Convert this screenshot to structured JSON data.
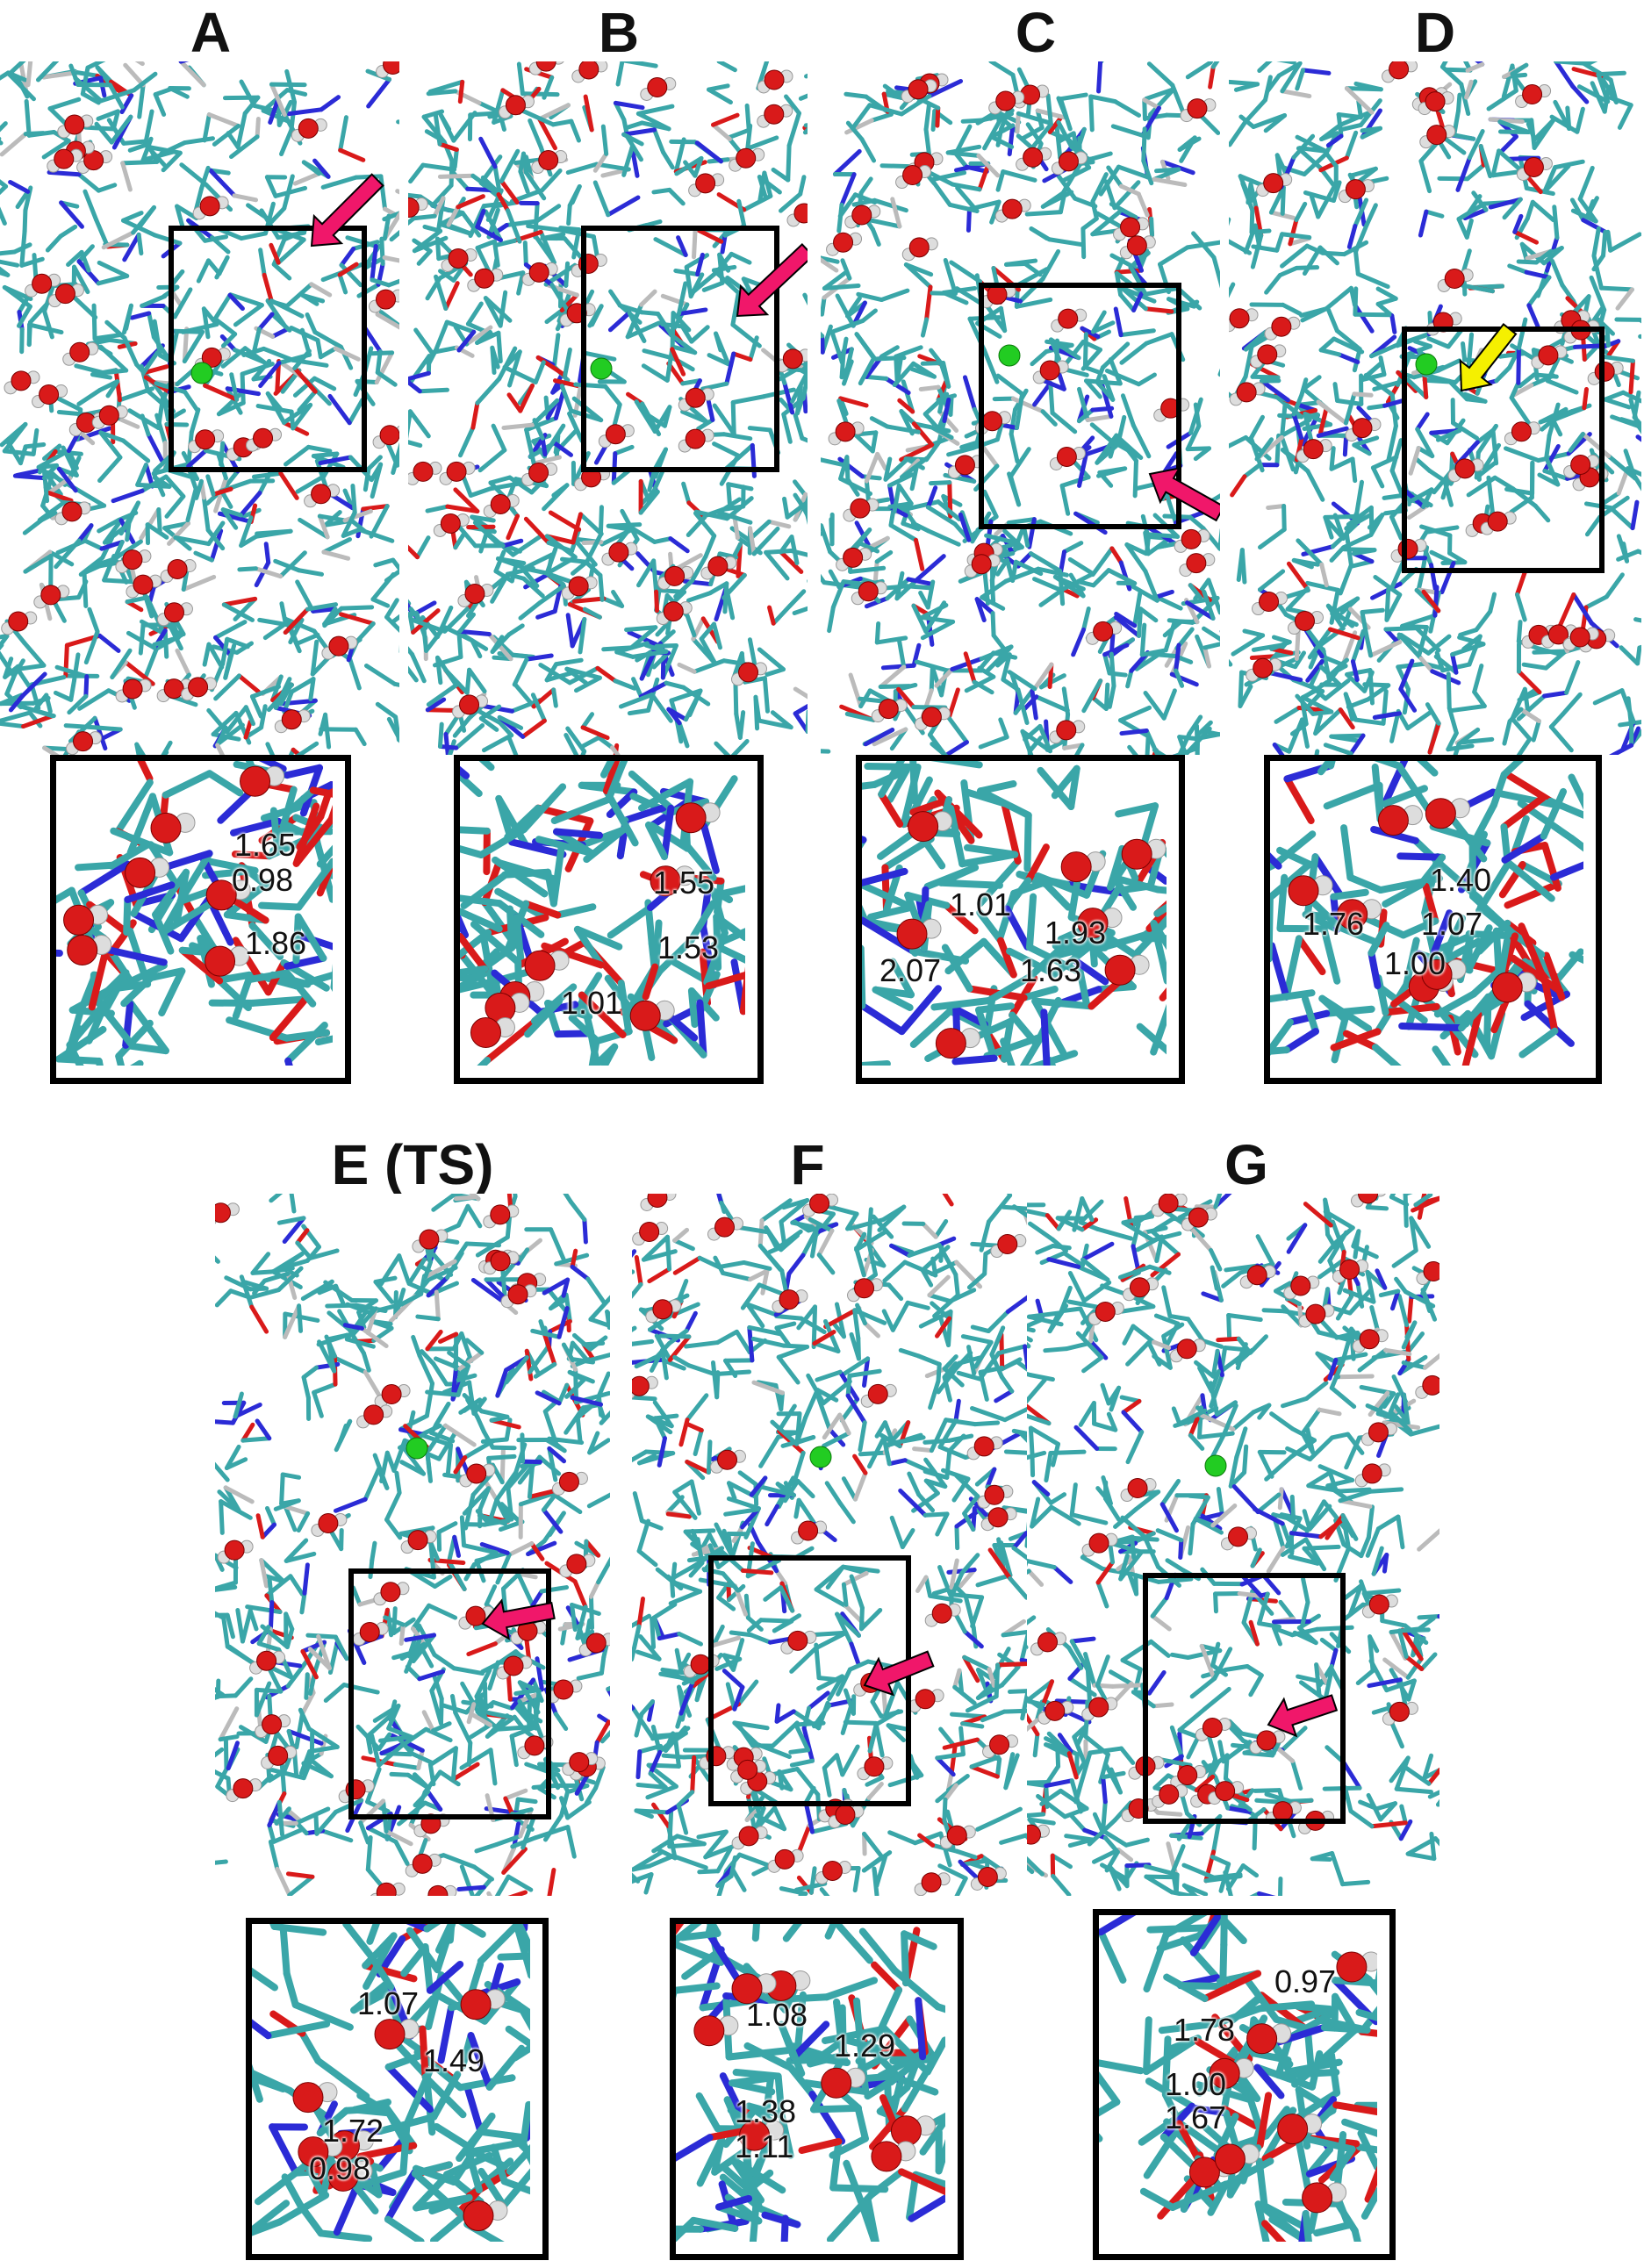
{
  "colors": {
    "carbon": "#3aa6a8",
    "nitrogen": "#2b2bd6",
    "oxygen": "#d91a1a",
    "hydrogen": "#dddddd",
    "chloride": "#22cc22",
    "arrow_pink": "#f0176a",
    "arrow_yellow": "#f5f000",
    "box": "#000000"
  },
  "icons": {
    "arrow": "arrow-icon",
    "chloride_atom": "sphere-icon"
  },
  "panels": [
    {
      "label": "A",
      "arrow_color": "pink",
      "distances": [
        "1.65",
        "0.98",
        "1.86"
      ]
    },
    {
      "label": "B",
      "arrow_color": "pink",
      "distances": [
        "1.55",
        "1.53",
        "1.01"
      ]
    },
    {
      "label": "C",
      "arrow_color": "pink",
      "distances": [
        "1.01",
        "1.93",
        "2.07",
        "1.63"
      ]
    },
    {
      "label": "D",
      "arrow_color": "yellow",
      "distances": [
        "1.40",
        "1.76",
        "1.07",
        "1.00"
      ]
    },
    {
      "label": "E (TS)",
      "arrow_color": "pink",
      "distances": [
        "1.07",
        "1.49",
        "1.72",
        "0.98"
      ]
    },
    {
      "label": "F",
      "arrow_color": "pink",
      "distances": [
        "1.08",
        "1.29",
        "1.38",
        "1.11"
      ]
    },
    {
      "label": "G",
      "arrow_color": "pink",
      "distances": [
        "0.97",
        "1.78",
        "1.00",
        "1.67"
      ]
    }
  ]
}
